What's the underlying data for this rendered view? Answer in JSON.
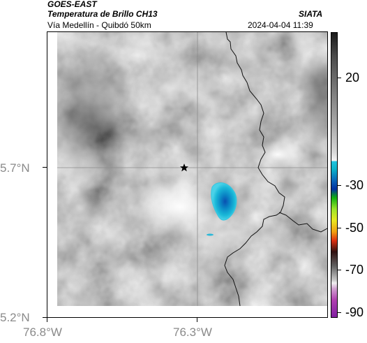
{
  "header": {
    "agency": "GOES-EAST",
    "product": "Temperatura de Brillo CH13",
    "brand": "SIATA",
    "region": "Vía Medellín - Quibdó 50km",
    "timestamp": "2024-04-04 11:39"
  },
  "axes": {
    "lat_labels": [
      "5.7°N",
      "5.2°N"
    ],
    "lon_labels": [
      "76.8°W",
      "76.3°W"
    ]
  },
  "colorbar": {
    "labels": [
      "20",
      "-30",
      "-50",
      "-70",
      "-90"
    ],
    "colors": {
      "warm_dark": "#1a1a1a",
      "cool_gray": "#f4f4f4",
      "cyan": "#22c4e0",
      "blue": "#0030a0",
      "green": "#10b010",
      "yellow": "#e8e820",
      "red": "#e03010",
      "magenta": "#b040b0"
    }
  },
  "map": {
    "marker": "star-icon",
    "features": [
      "brightness-temperature-field",
      "cold-cloud-top-cyan-blue",
      "department-boundary"
    ]
  }
}
